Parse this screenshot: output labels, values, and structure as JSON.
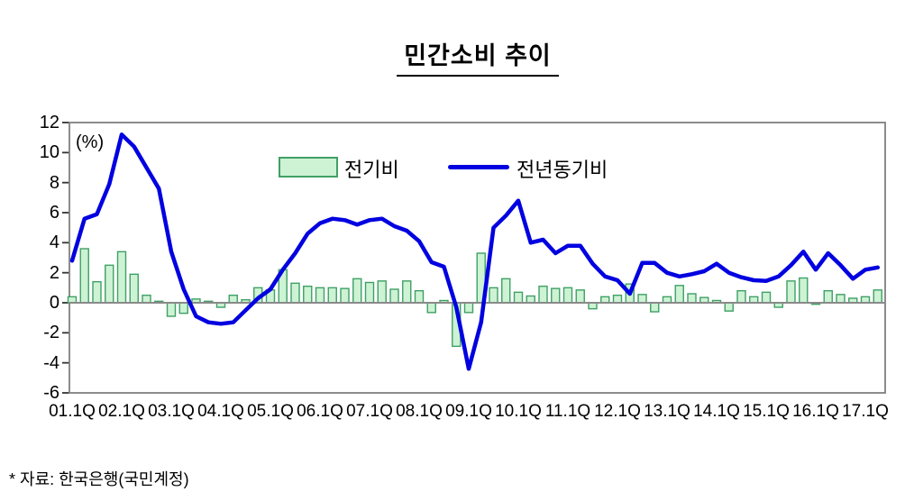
{
  "title": "민간소비 추이",
  "unit_label": "(%)",
  "source_note": "* 자료: 한국은행(국민계정)",
  "legend": {
    "bar_label": "전기비",
    "line_label": "전년동기비"
  },
  "colors": {
    "bar_fill": "#cdf2d4",
    "bar_stroke": "#3fa065",
    "line": "#0000e0",
    "axis": "#808080",
    "tick": "#333333",
    "zero_line": "#8a8a8a"
  },
  "chart_data": {
    "type": "bar",
    "title": "민간소비 추이",
    "ylabel": "(%)",
    "ylim": [
      -6,
      12
    ],
    "yticks": [
      12,
      10,
      8,
      6,
      4,
      2,
      0,
      -2,
      -4,
      -6
    ],
    "grid": false,
    "legend_position": "top-center",
    "x_tick_labels": [
      "01.1Q",
      "02.1Q",
      "03.1Q",
      "04.1Q",
      "05.1Q",
      "06.1Q",
      "07.1Q",
      "08.1Q",
      "09.1Q",
      "10.1Q",
      "11.1Q",
      "12.1Q",
      "13.1Q",
      "14.1Q",
      "15.1Q",
      "16.1Q",
      "17.1Q"
    ],
    "x_tick_every": 4,
    "categories": [
      "01.1Q",
      "01.2Q",
      "01.3Q",
      "01.4Q",
      "02.1Q",
      "02.2Q",
      "02.3Q",
      "02.4Q",
      "03.1Q",
      "03.2Q",
      "03.3Q",
      "03.4Q",
      "04.1Q",
      "04.2Q",
      "04.3Q",
      "04.4Q",
      "05.1Q",
      "05.2Q",
      "05.3Q",
      "05.4Q",
      "06.1Q",
      "06.2Q",
      "06.3Q",
      "06.4Q",
      "07.1Q",
      "07.2Q",
      "07.3Q",
      "07.4Q",
      "08.1Q",
      "08.2Q",
      "08.3Q",
      "08.4Q",
      "09.1Q",
      "09.2Q",
      "09.3Q",
      "09.4Q",
      "10.1Q",
      "10.2Q",
      "10.3Q",
      "10.4Q",
      "11.1Q",
      "11.2Q",
      "11.3Q",
      "11.4Q",
      "12.1Q",
      "12.2Q",
      "12.3Q",
      "12.4Q",
      "13.1Q",
      "13.2Q",
      "13.3Q",
      "13.4Q",
      "14.1Q",
      "14.2Q",
      "14.3Q",
      "14.4Q",
      "15.1Q",
      "15.2Q",
      "15.3Q",
      "15.4Q",
      "16.1Q",
      "16.2Q",
      "16.3Q",
      "16.4Q",
      "17.1Q",
      "17.2Q"
    ],
    "series": [
      {
        "name": "전기비",
        "type": "bar",
        "values": [
          0.4,
          3.6,
          1.4,
          2.5,
          3.4,
          1.9,
          0.5,
          0.1,
          -0.9,
          -0.7,
          0.25,
          0.1,
          -0.3,
          0.5,
          0.2,
          1.0,
          0.85,
          2.2,
          1.3,
          1.1,
          1.0,
          1.0,
          0.95,
          1.6,
          1.35,
          1.45,
          0.9,
          1.45,
          0.8,
          -0.65,
          0.15,
          -2.9,
          -0.65,
          3.3,
          1.0,
          1.6,
          0.7,
          0.45,
          1.1,
          0.95,
          1.0,
          0.85,
          -0.4,
          0.4,
          0.5,
          1.25,
          0.55,
          -0.6,
          0.4,
          1.15,
          0.6,
          0.35,
          0.15,
          -0.55,
          0.8,
          0.4,
          0.7,
          -0.3,
          1.45,
          1.65,
          -0.1,
          0.8,
          0.55,
          0.3,
          0.4,
          0.85
        ]
      },
      {
        "name": "전년동기비",
        "type": "line",
        "values": [
          2.8,
          5.6,
          5.9,
          7.9,
          11.2,
          10.4,
          9.0,
          7.6,
          3.4,
          0.9,
          -0.9,
          -1.3,
          -1.4,
          -1.3,
          -0.5,
          0.3,
          0.9,
          2.2,
          3.3,
          4.6,
          5.3,
          5.6,
          5.5,
          5.2,
          5.5,
          5.6,
          5.1,
          4.8,
          4.1,
          2.7,
          2.4,
          -0.3,
          -4.4,
          -1.3,
          5.0,
          5.8,
          6.8,
          4.0,
          4.2,
          3.3,
          3.8,
          3.8,
          2.6,
          1.75,
          1.5,
          0.6,
          2.65,
          2.65,
          2.0,
          1.75,
          1.9,
          2.1,
          2.6,
          2.0,
          1.7,
          1.5,
          1.45,
          1.75,
          2.5,
          3.4,
          2.2,
          3.3,
          2.5,
          1.6,
          2.2,
          2.35
        ]
      }
    ]
  }
}
